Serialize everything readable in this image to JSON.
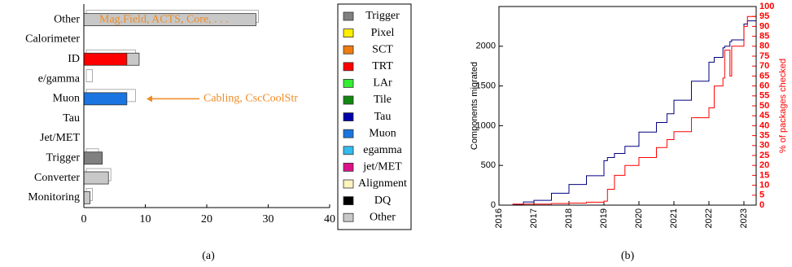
{
  "chart_data": [
    {
      "type": "stacked-hbar",
      "caption": "(a)",
      "categories": [
        "Other",
        "Calorimeter",
        "ID",
        "e/gamma",
        "Muon",
        "Tau",
        "Jet/MET",
        "Trigger",
        "Converter",
        "Monitoring"
      ],
      "outline_values": [
        28,
        0,
        8,
        1,
        8,
        0,
        0,
        2,
        4,
        1
      ],
      "series": [
        {
          "name": "Trigger",
          "color": "#808080",
          "values": [
            0,
            0,
            0,
            0,
            0,
            0,
            0,
            3,
            0,
            0
          ]
        },
        {
          "name": "Pixel",
          "color": "#ffee00",
          "values": [
            0,
            0,
            0,
            0,
            0,
            0,
            0,
            0,
            0,
            0
          ]
        },
        {
          "name": "SCT",
          "color": "#f07a10",
          "values": [
            0,
            0,
            0,
            0,
            0,
            0,
            0,
            0,
            0,
            0
          ]
        },
        {
          "name": "TRT",
          "color": "#ff0000",
          "values": [
            0,
            0,
            7,
            0,
            0,
            0,
            0,
            0,
            0,
            0
          ]
        },
        {
          "name": "LAr",
          "color": "#33ee33",
          "values": [
            0,
            0,
            0,
            0,
            0,
            0,
            0,
            0,
            0,
            0
          ]
        },
        {
          "name": "Tile",
          "color": "#118811",
          "values": [
            0,
            0,
            0,
            0,
            0,
            0,
            0,
            0,
            0,
            0
          ]
        },
        {
          "name": "Tau",
          "color": "#0000aa",
          "values": [
            0,
            0,
            0,
            0,
            0,
            0,
            0,
            0,
            0,
            0
          ]
        },
        {
          "name": "Muon",
          "color": "#1a75e0",
          "values": [
            0,
            0,
            0,
            0,
            7,
            0,
            0,
            0,
            0,
            0
          ]
        },
        {
          "name": "egamma",
          "color": "#33bbee",
          "values": [
            0,
            0,
            0,
            0,
            0,
            0,
            0,
            0,
            0,
            0
          ]
        },
        {
          "name": "jet/MET",
          "color": "#dd1188",
          "values": [
            0,
            0,
            0,
            0,
            0,
            0,
            0,
            0,
            0,
            0
          ]
        },
        {
          "name": "Alignment",
          "color": "#fff3c0",
          "values": [
            0,
            0,
            0,
            0,
            0,
            0,
            0,
            0,
            0,
            0
          ]
        },
        {
          "name": "DQ",
          "color": "#000000",
          "values": [
            0,
            0,
            0,
            0,
            0,
            0,
            0,
            0,
            0,
            0
          ]
        },
        {
          "name": "Other",
          "color": "#c8c8c8",
          "values": [
            28,
            0,
            2,
            0,
            0,
            0,
            0,
            0,
            4,
            1
          ]
        }
      ],
      "xlim": [
        0,
        40
      ],
      "xticks": [
        0,
        10,
        20,
        30,
        40
      ],
      "annotations": [
        "Mag.Field, ACTS, Core, . . .",
        "Cabling, CscCoolStr"
      ],
      "annotation_color": "#f08a20"
    },
    {
      "type": "step-line",
      "caption": "(b)",
      "step": "post",
      "x": [
        2016.0,
        2016.4,
        2016.7,
        2017.0,
        2017.5,
        2018.0,
        2018.5,
        2019.0,
        2019.1,
        2019.3,
        2019.6,
        2020.0,
        2020.5,
        2020.8,
        2021.0,
        2021.5,
        2022.0,
        2022.15,
        2022.4,
        2022.45,
        2022.6,
        2022.65,
        2023.0,
        2023.1,
        2023.35
      ],
      "series": [
        {
          "name": "Components migrated",
          "color": "#000080",
          "values": [
            0,
            10,
            40,
            60,
            150,
            260,
            370,
            560,
            600,
            650,
            740,
            920,
            1040,
            1150,
            1320,
            1560,
            1800,
            1860,
            1980,
            2000,
            2060,
            2080,
            2280,
            2320,
            2400
          ]
        },
        {
          "name": "% of packages checked",
          "color": "#ff0000",
          "axis": "y2",
          "values": [
            0,
            0.5,
            0.5,
            0.5,
            0.8,
            1,
            1.5,
            2,
            8,
            15,
            20,
            24,
            29,
            33,
            37,
            44,
            49,
            60,
            64,
            78,
            65,
            80,
            90,
            95,
            97
          ]
        }
      ],
      "xlim": [
        2016,
        2023.35
      ],
      "xticks": [
        2016,
        2017,
        2018,
        2019,
        2020,
        2021,
        2022,
        2023
      ],
      "ylim": [
        0,
        2500
      ],
      "yticks": [
        0,
        500,
        1000,
        1500,
        2000
      ],
      "y2lim": [
        0,
        100
      ],
      "y2ticks": [
        0,
        5,
        10,
        15,
        20,
        25,
        30,
        35,
        40,
        45,
        50,
        55,
        60,
        65,
        70,
        75,
        80,
        85,
        90,
        95,
        100
      ]
    }
  ]
}
